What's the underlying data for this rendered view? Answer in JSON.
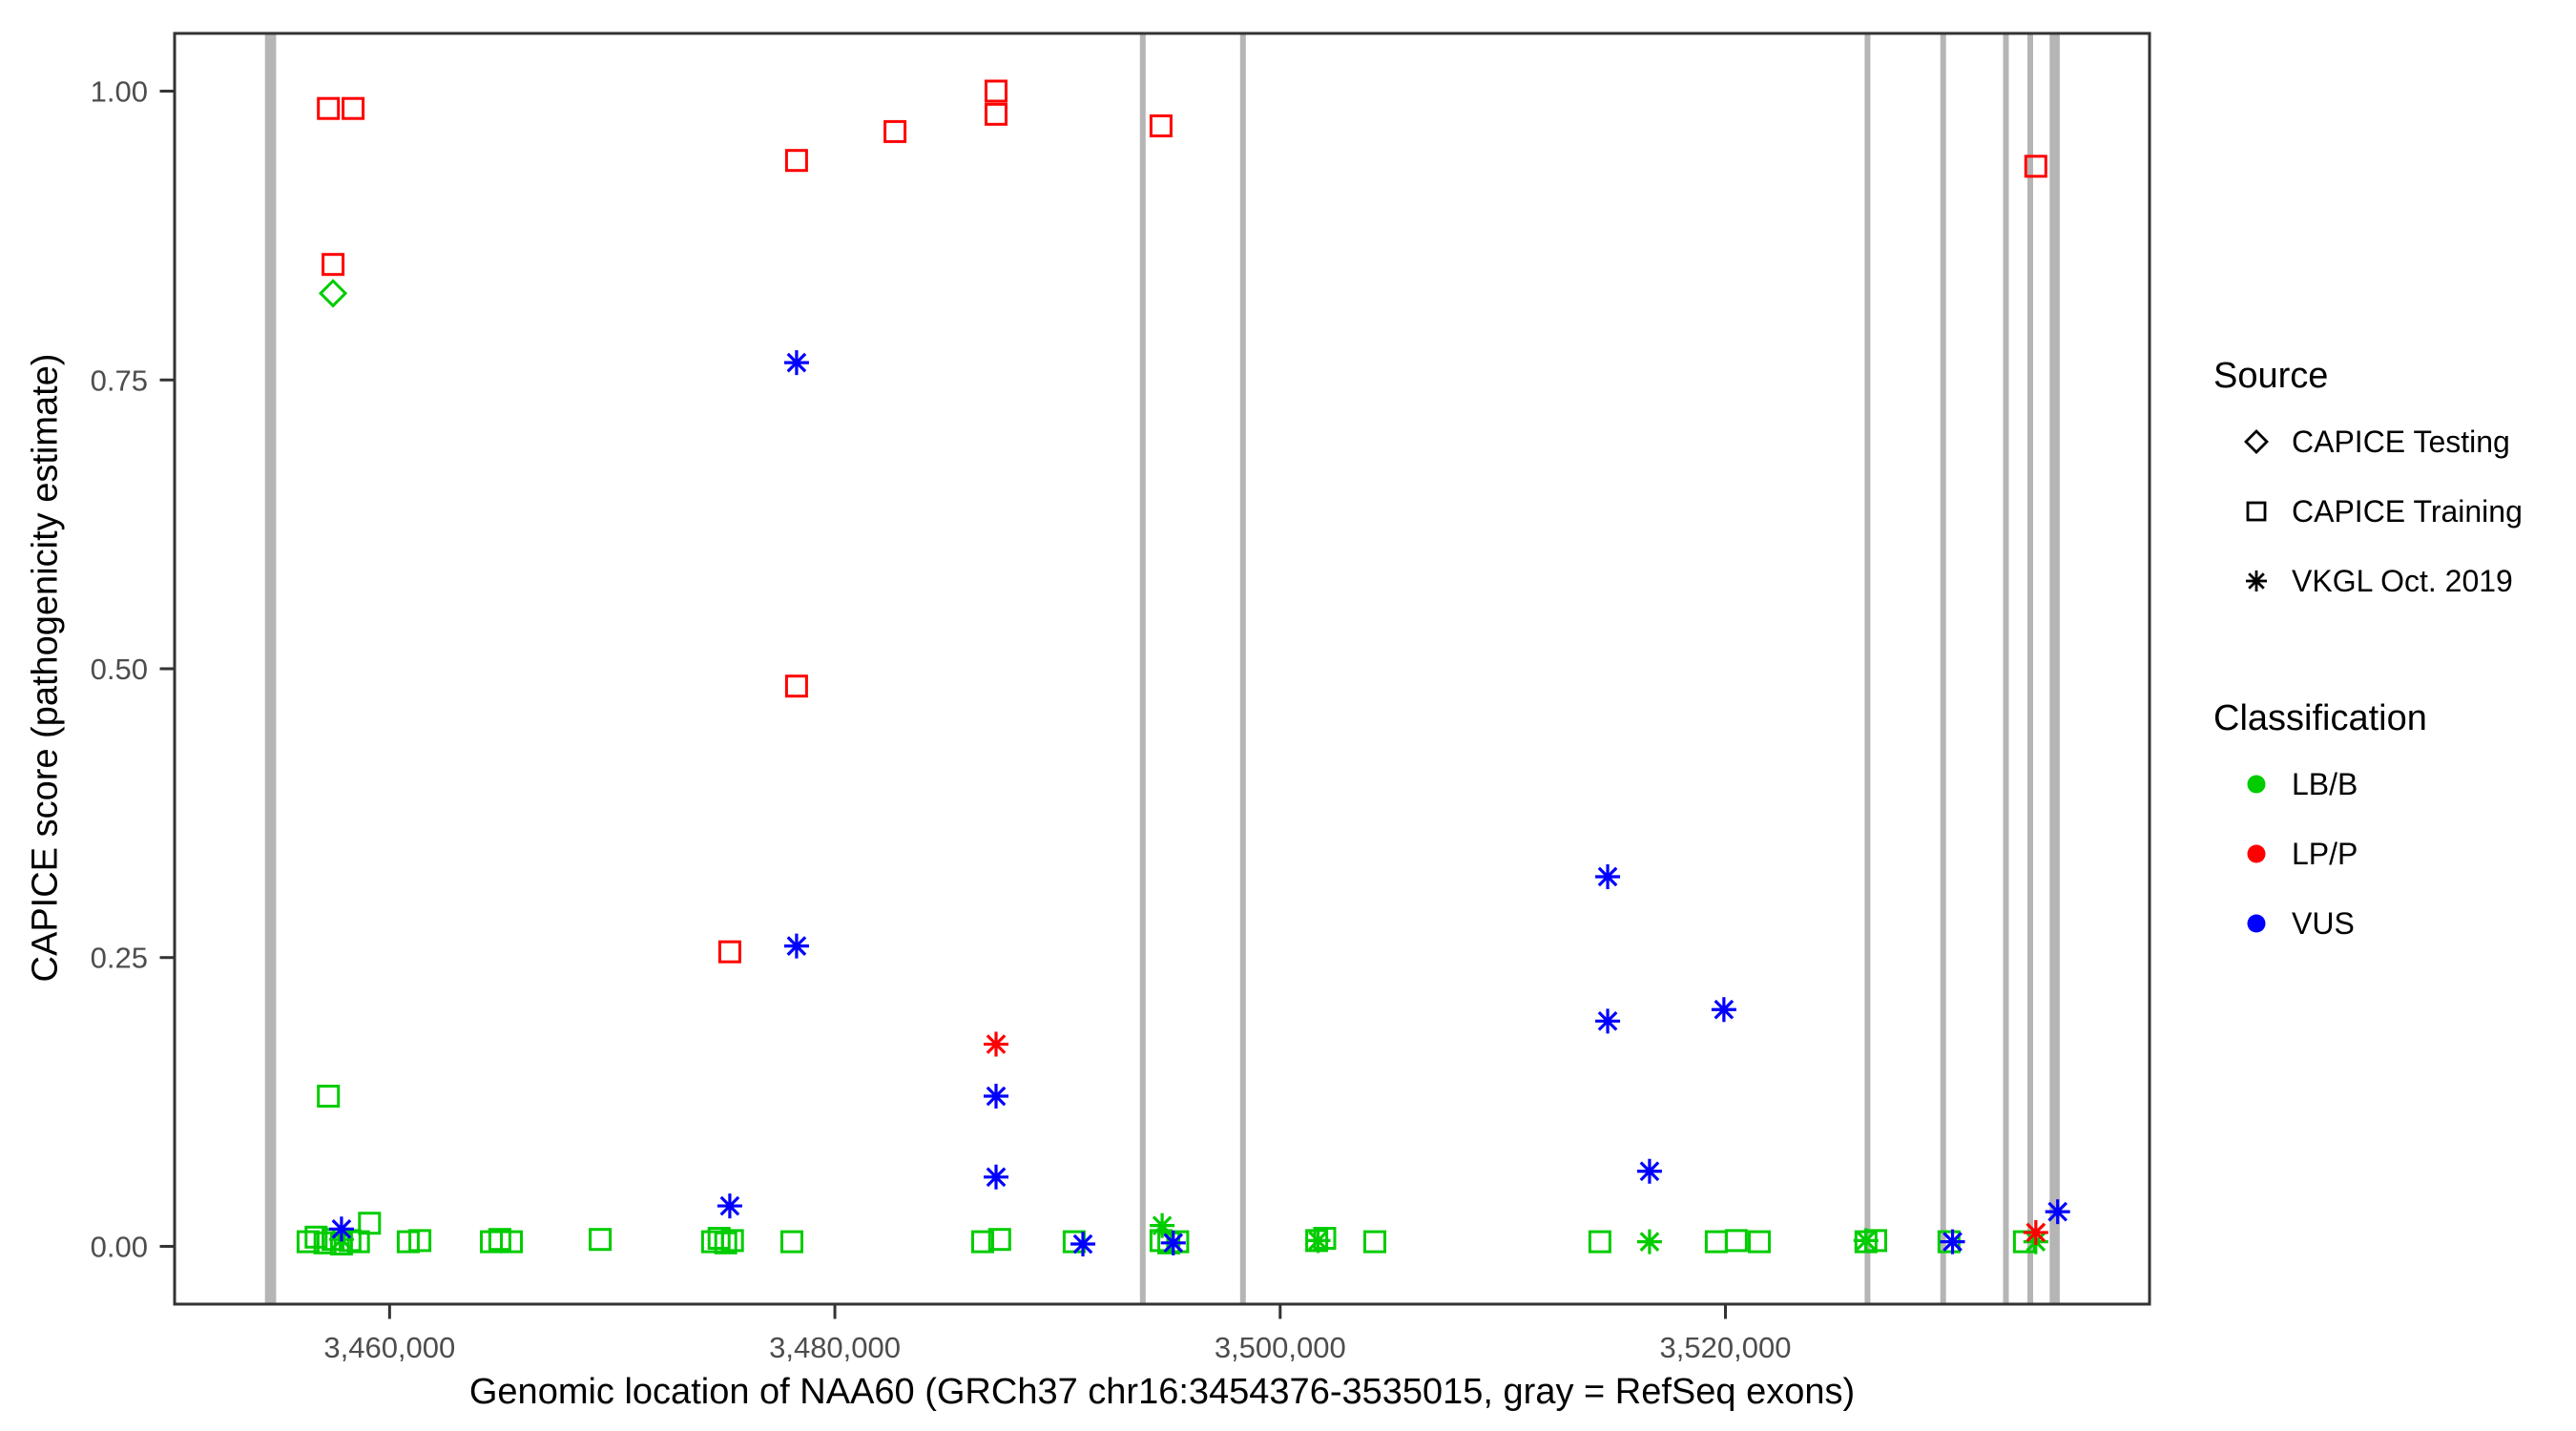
{
  "figure": {
    "xlabel": "Genomic location of NAA60 (GRCh37 chr16:3454376-3535015, gray = RefSeq exons)",
    "ylabel": "CAPICE score (pathogenicity estimate)"
  },
  "legend": {
    "source": {
      "title": "Source",
      "items": [
        {
          "label": "CAPICE Testing",
          "marker": "diamond"
        },
        {
          "label": "CAPICE Training",
          "marker": "square"
        },
        {
          "label": "VKGL Oct. 2019",
          "marker": "asterisk"
        }
      ]
    },
    "classification": {
      "title": "Classification",
      "items": [
        {
          "label": "LB/B",
          "color": "#00cc00"
        },
        {
          "label": "LP/P",
          "color": "#ff0000"
        },
        {
          "label": "VUS",
          "color": "#0000ff"
        }
      ]
    }
  },
  "colors": {
    "exon": "#b5b5b5",
    "axis_text": "#4d4d4d",
    "panel_border": "#333333",
    "legend_glyph": "#000000"
  },
  "chart_data": {
    "type": "scatter",
    "title": "",
    "xlabel": "Genomic location of NAA60 (GRCh37 chr16:3454376-3535015, gray = RefSeq exons)",
    "ylabel": "CAPICE score (pathogenicity estimate)",
    "grid": false,
    "legend_position": "right",
    "xlim": [
      3450344,
      3539047
    ],
    "ylim": [
      -0.05,
      1.05
    ],
    "x_ticks": [
      {
        "value": 3460000,
        "label": "3,460,000"
      },
      {
        "value": 3480000,
        "label": "3,480,000"
      },
      {
        "value": 3500000,
        "label": "3,500,000"
      },
      {
        "value": 3520000,
        "label": "3,520,000"
      }
    ],
    "y_ticks": [
      {
        "value": 0.0,
        "label": "0.00"
      },
      {
        "value": 0.25,
        "label": "0.25"
      },
      {
        "value": 0.5,
        "label": "0.50"
      },
      {
        "value": 0.75,
        "label": "0.75"
      },
      {
        "value": 1.0,
        "label": "1.00"
      }
    ],
    "exons": [
      [
        3454400,
        3454900
      ],
      [
        3493700,
        3493850
      ],
      [
        3498200,
        3498350
      ],
      [
        3526250,
        3526400
      ],
      [
        3529650,
        3529800
      ],
      [
        3532470,
        3532620
      ],
      [
        3533560,
        3533740
      ],
      [
        3534560,
        3535015
      ]
    ],
    "marker_by_source": {
      "CAPICE Testing": "diamond",
      "CAPICE Training": "square",
      "VKGL Oct. 2019": "asterisk"
    },
    "color_by_classification": {
      "LB/B": "#00cc00",
      "LP/P": "#ff0000",
      "VUS": "#0000ff"
    },
    "points": [
      {
        "x": 3457250,
        "y": 0.985,
        "source": "CAPICE Training",
        "cls": "LP/P"
      },
      {
        "x": 3458360,
        "y": 0.985,
        "source": "CAPICE Training",
        "cls": "LP/P"
      },
      {
        "x": 3457460,
        "y": 0.85,
        "source": "CAPICE Training",
        "cls": "LP/P"
      },
      {
        "x": 3478280,
        "y": 0.94,
        "source": "CAPICE Training",
        "cls": "LP/P"
      },
      {
        "x": 3482700,
        "y": 0.965,
        "source": "CAPICE Training",
        "cls": "LP/P"
      },
      {
        "x": 3487240,
        "y": 1.0,
        "source": "CAPICE Training",
        "cls": "LP/P"
      },
      {
        "x": 3487240,
        "y": 0.98,
        "source": "CAPICE Training",
        "cls": "LP/P"
      },
      {
        "x": 3494650,
        "y": 0.97,
        "source": "CAPICE Training",
        "cls": "LP/P"
      },
      {
        "x": 3478280,
        "y": 0.485,
        "source": "CAPICE Training",
        "cls": "LP/P"
      },
      {
        "x": 3475280,
        "y": 0.255,
        "source": "CAPICE Training",
        "cls": "LP/P"
      },
      {
        "x": 3533940,
        "y": 0.935,
        "source": "CAPICE Training",
        "cls": "LP/P"
      },
      {
        "x": 3457460,
        "y": 0.825,
        "source": "CAPICE Testing",
        "cls": "LB/B"
      },
      {
        "x": 3457250,
        "y": 0.13,
        "source": "CAPICE Training",
        "cls": "LB/B"
      },
      {
        "x": 3459100,
        "y": 0.02,
        "source": "CAPICE Training",
        "cls": "LB/B"
      },
      {
        "x": 3456340,
        "y": 0.004,
        "source": "CAPICE Training",
        "cls": "LB/B"
      },
      {
        "x": 3456700,
        "y": 0.008,
        "source": "CAPICE Training",
        "cls": "LB/B"
      },
      {
        "x": 3457100,
        "y": 0.003,
        "source": "CAPICE Training",
        "cls": "LB/B"
      },
      {
        "x": 3457460,
        "y": 0.006,
        "source": "CAPICE Training",
        "cls": "LB/B"
      },
      {
        "x": 3457840,
        "y": 0.002,
        "source": "CAPICE Training",
        "cls": "LB/B"
      },
      {
        "x": 3458220,
        "y": 0.005,
        "source": "CAPICE Training",
        "cls": "LB/B"
      },
      {
        "x": 3458600,
        "y": 0.004,
        "source": "CAPICE Training",
        "cls": "LB/B"
      },
      {
        "x": 3460840,
        "y": 0.004,
        "source": "CAPICE Training",
        "cls": "LB/B"
      },
      {
        "x": 3461360,
        "y": 0.005,
        "source": "CAPICE Training",
        "cls": "LB/B"
      },
      {
        "x": 3464570,
        "y": 0.004,
        "source": "CAPICE Training",
        "cls": "LB/B"
      },
      {
        "x": 3464950,
        "y": 0.006,
        "source": "CAPICE Training",
        "cls": "LB/B"
      },
      {
        "x": 3465470,
        "y": 0.004,
        "source": "CAPICE Training",
        "cls": "LB/B"
      },
      {
        "x": 3469460,
        "y": 0.006,
        "source": "CAPICE Training",
        "cls": "LB/B"
      },
      {
        "x": 3474510,
        "y": 0.004,
        "source": "CAPICE Training",
        "cls": "LB/B"
      },
      {
        "x": 3474800,
        "y": 0.007,
        "source": "CAPICE Training",
        "cls": "LB/B"
      },
      {
        "x": 3475100,
        "y": 0.003,
        "source": "CAPICE Training",
        "cls": "LB/B"
      },
      {
        "x": 3475400,
        "y": 0.005,
        "source": "CAPICE Training",
        "cls": "LB/B"
      },
      {
        "x": 3478070,
        "y": 0.004,
        "source": "CAPICE Training",
        "cls": "LB/B"
      },
      {
        "x": 3486640,
        "y": 0.004,
        "source": "CAPICE Training",
        "cls": "LB/B"
      },
      {
        "x": 3487400,
        "y": 0.006,
        "source": "CAPICE Training",
        "cls": "LB/B"
      },
      {
        "x": 3490750,
        "y": 0.004,
        "source": "CAPICE Training",
        "cls": "LB/B"
      },
      {
        "x": 3494650,
        "y": 0.005,
        "source": "CAPICE Training",
        "cls": "LB/B"
      },
      {
        "x": 3495000,
        "y": 0.003,
        "source": "CAPICE Training",
        "cls": "LB/B"
      },
      {
        "x": 3495400,
        "y": 0.004,
        "source": "CAPICE Training",
        "cls": "LB/B"
      },
      {
        "x": 3501640,
        "y": 0.005,
        "source": "CAPICE Training",
        "cls": "LB/B"
      },
      {
        "x": 3502000,
        "y": 0.007,
        "source": "CAPICE Training",
        "cls": "LB/B"
      },
      {
        "x": 3504250,
        "y": 0.004,
        "source": "CAPICE Training",
        "cls": "LB/B"
      },
      {
        "x": 3514360,
        "y": 0.004,
        "source": "CAPICE Training",
        "cls": "LB/B"
      },
      {
        "x": 3519590,
        "y": 0.004,
        "source": "CAPICE Training",
        "cls": "LB/B"
      },
      {
        "x": 3520490,
        "y": 0.005,
        "source": "CAPICE Training",
        "cls": "LB/B"
      },
      {
        "x": 3521520,
        "y": 0.004,
        "source": "CAPICE Training",
        "cls": "LB/B"
      },
      {
        "x": 3526310,
        "y": 0.004,
        "source": "CAPICE Training",
        "cls": "LB/B"
      },
      {
        "x": 3526750,
        "y": 0.005,
        "source": "CAPICE Training",
        "cls": "LB/B"
      },
      {
        "x": 3530040,
        "y": 0.004,
        "source": "CAPICE Training",
        "cls": "LB/B"
      },
      {
        "x": 3533430,
        "y": 0.004,
        "source": "CAPICE Training",
        "cls": "LB/B"
      },
      {
        "x": 3457840,
        "y": 0.006,
        "source": "VKGL Oct. 2019",
        "cls": "LB/B"
      },
      {
        "x": 3494700,
        "y": 0.018,
        "source": "VKGL Oct. 2019",
        "cls": "LB/B"
      },
      {
        "x": 3501700,
        "y": 0.005,
        "source": "VKGL Oct. 2019",
        "cls": "LB/B"
      },
      {
        "x": 3516590,
        "y": 0.004,
        "source": "VKGL Oct. 2019",
        "cls": "LB/B"
      },
      {
        "x": 3526310,
        "y": 0.005,
        "source": "VKGL Oct. 2019",
        "cls": "LB/B"
      },
      {
        "x": 3533940,
        "y": 0.004,
        "source": "VKGL Oct. 2019",
        "cls": "LB/B"
      },
      {
        "x": 3487240,
        "y": 0.175,
        "source": "VKGL Oct. 2019",
        "cls": "LP/P"
      },
      {
        "x": 3533940,
        "y": 0.012,
        "source": "VKGL Oct. 2019",
        "cls": "LP/P"
      },
      {
        "x": 3478280,
        "y": 0.765,
        "source": "VKGL Oct. 2019",
        "cls": "VUS"
      },
      {
        "x": 3478280,
        "y": 0.26,
        "source": "VKGL Oct. 2019",
        "cls": "VUS"
      },
      {
        "x": 3475280,
        "y": 0.035,
        "source": "VKGL Oct. 2019",
        "cls": "VUS"
      },
      {
        "x": 3487240,
        "y": 0.13,
        "source": "VKGL Oct. 2019",
        "cls": "VUS"
      },
      {
        "x": 3487240,
        "y": 0.06,
        "source": "VKGL Oct. 2019",
        "cls": "VUS"
      },
      {
        "x": 3514710,
        "y": 0.32,
        "source": "VKGL Oct. 2019",
        "cls": "VUS"
      },
      {
        "x": 3514710,
        "y": 0.195,
        "source": "VKGL Oct. 2019",
        "cls": "VUS"
      },
      {
        "x": 3519930,
        "y": 0.205,
        "source": "VKGL Oct. 2019",
        "cls": "VUS"
      },
      {
        "x": 3516590,
        "y": 0.065,
        "source": "VKGL Oct. 2019",
        "cls": "VUS"
      },
      {
        "x": 3457840,
        "y": 0.015,
        "source": "VKGL Oct. 2019",
        "cls": "VUS"
      },
      {
        "x": 3491140,
        "y": 0.002,
        "source": "VKGL Oct. 2019",
        "cls": "VUS"
      },
      {
        "x": 3495200,
        "y": 0.003,
        "source": "VKGL Oct. 2019",
        "cls": "VUS"
      },
      {
        "x": 3530200,
        "y": 0.004,
        "source": "VKGL Oct. 2019",
        "cls": "VUS"
      },
      {
        "x": 3534920,
        "y": 0.03,
        "source": "VKGL Oct. 2019",
        "cls": "VUS"
      }
    ]
  }
}
